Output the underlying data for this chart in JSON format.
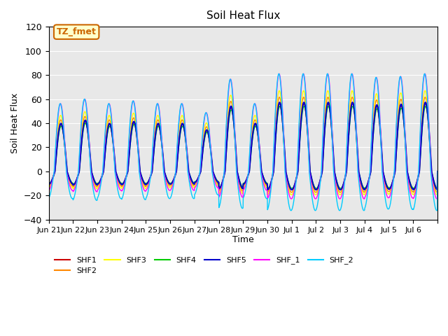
{
  "title": "Soil Heat Flux",
  "ylabel": "Soil Heat Flux",
  "xlabel": "Time",
  "ylim": [
    -40,
    120
  ],
  "bg_color": "#e8e8e8",
  "series": [
    {
      "name": "SHF1",
      "color": "#cc0000"
    },
    {
      "name": "SHF2",
      "color": "#ff8800"
    },
    {
      "name": "SHF3",
      "color": "#ffff00"
    },
    {
      "name": "SHF4",
      "color": "#00cc00"
    },
    {
      "name": "SHF5",
      "color": "#0000cc"
    },
    {
      "name": "SHF_1",
      "color": "#ff00ff"
    },
    {
      "name": "SHF_2",
      "color": "#00ccff"
    }
  ],
  "annotation_text": "TZ_fmet",
  "annotation_color": "#cc6600",
  "annotation_bg": "#ffffcc",
  "n_days": 16,
  "tick_positions": [
    0,
    1,
    2,
    3,
    4,
    5,
    6,
    7,
    8,
    9,
    10,
    11,
    12,
    13,
    14,
    15,
    16
  ],
  "tick_labels": [
    "Jun 21",
    "Jun 22",
    "Jun 23",
    "Jun 24",
    "Jun 25",
    "Jun 26",
    "Jun 27",
    "Jun 28",
    "Jun 29",
    "Jun 30",
    "Jul 1",
    "Jul 2",
    "Jul 3",
    "Jul 4",
    "Jul 5",
    "Jul 6",
    ""
  ],
  "amplitudes": [
    75,
    80,
    75,
    78,
    75,
    75,
    65,
    102,
    75,
    108,
    108,
    108,
    108,
    104,
    105,
    108
  ]
}
